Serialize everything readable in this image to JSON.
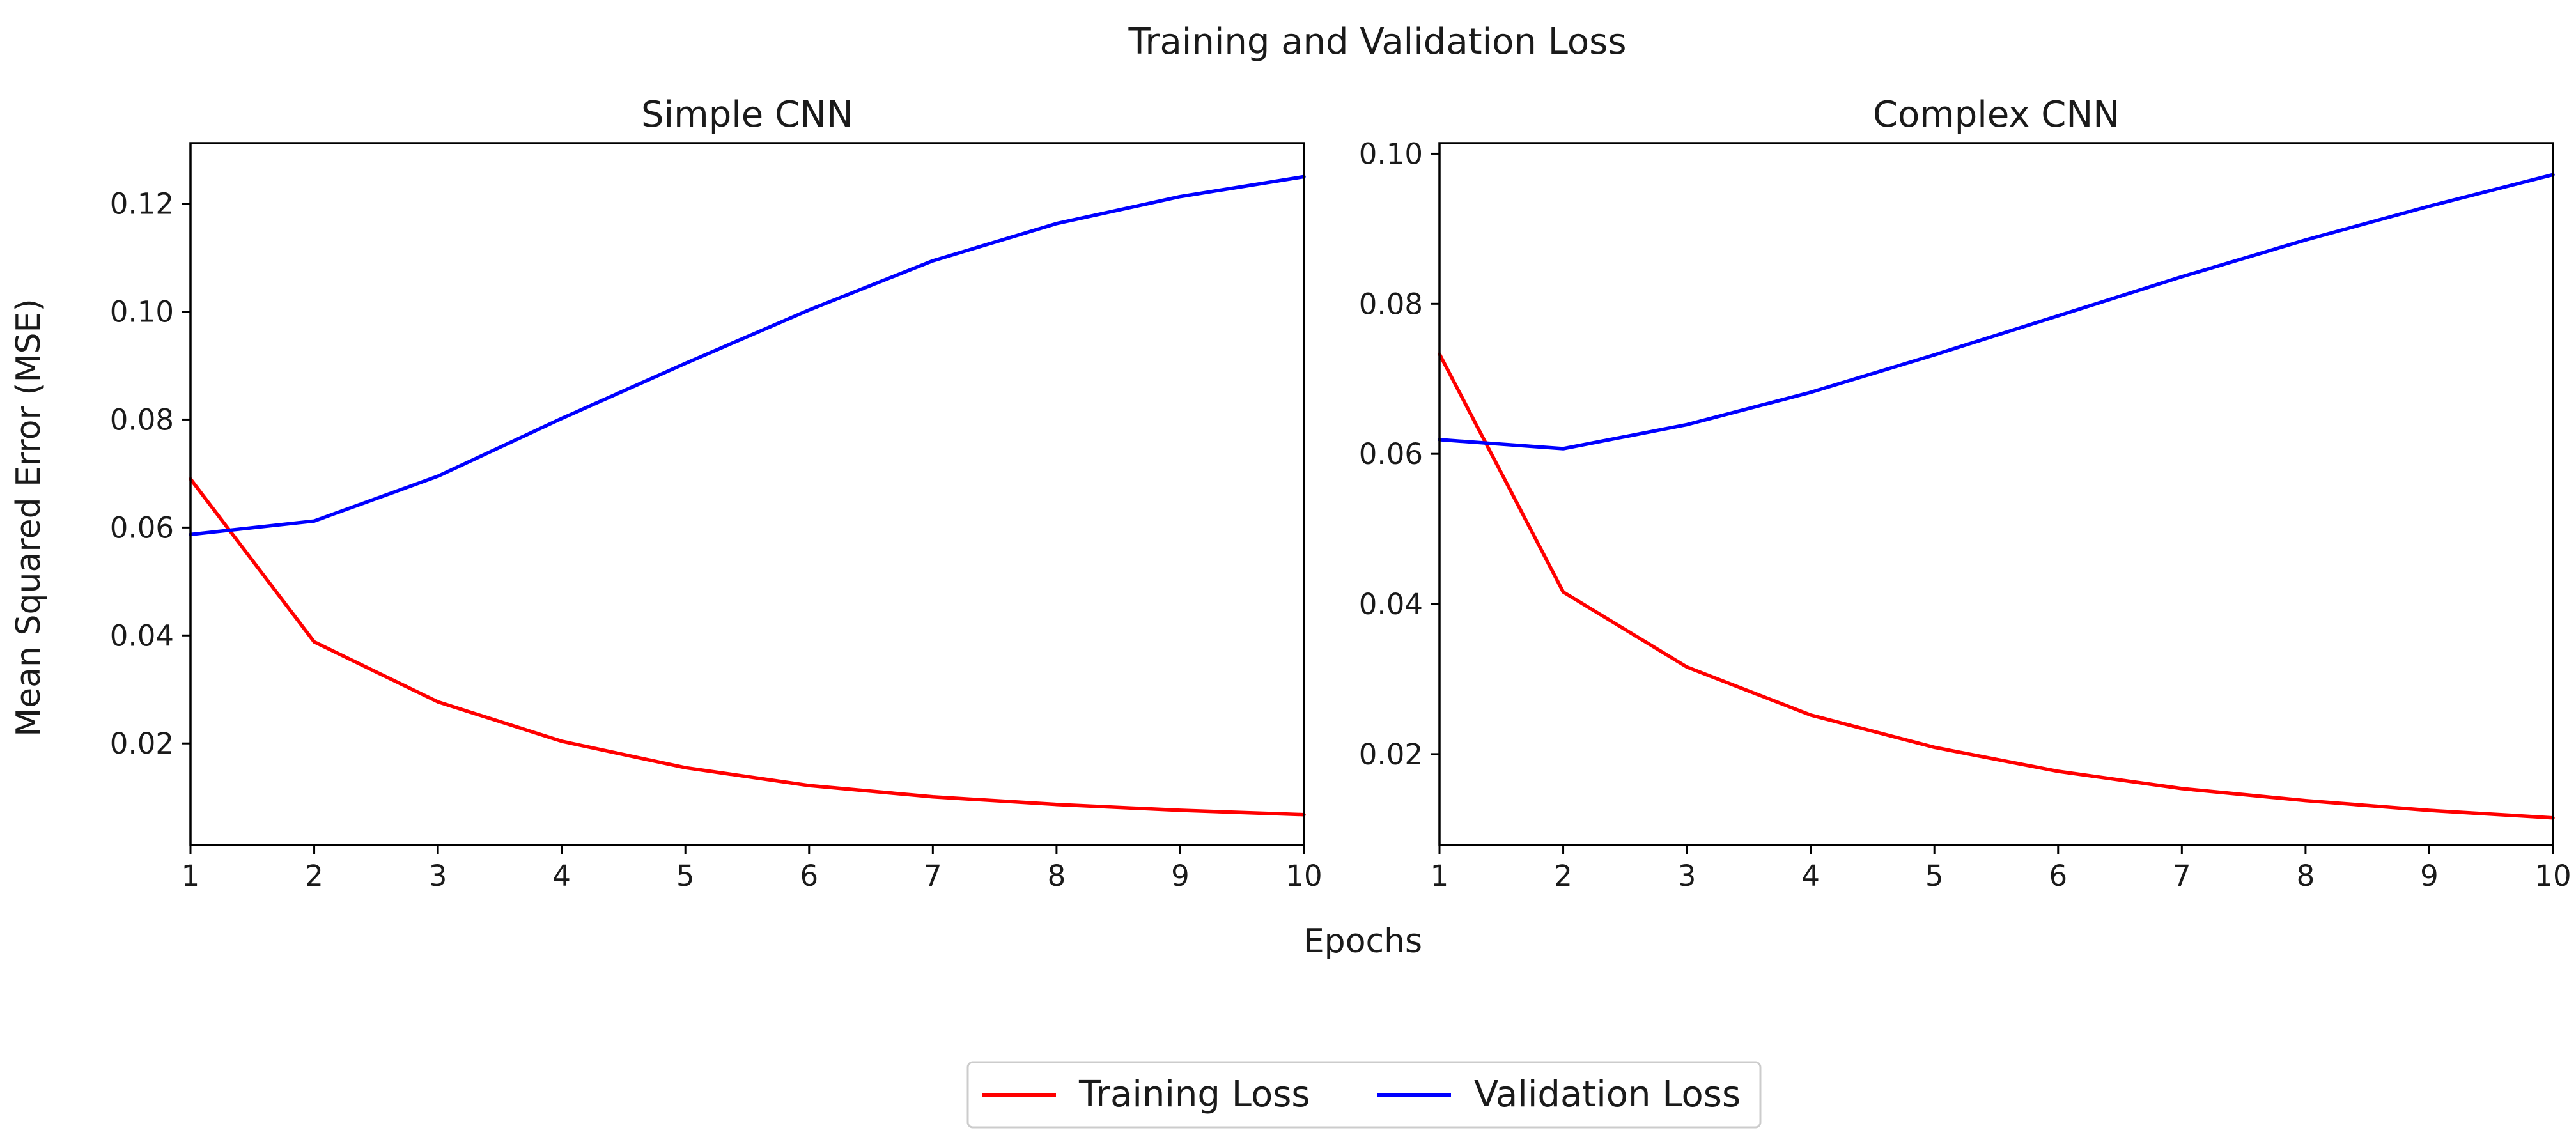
{
  "chart_data": {
    "title": "Training and Validation Loss",
    "xlabel": "Epochs",
    "ylabel": "Mean Squared Error (MSE)",
    "legend": {
      "position": "bottom-center",
      "entries": [
        {
          "label": "Training Loss",
          "color": "#ff0000"
        },
        {
          "label": "Validation Loss",
          "color": "#0000ff"
        }
      ]
    },
    "subplots": [
      {
        "type": "line",
        "title": "Simple CNN",
        "x": [
          1,
          2,
          3,
          4,
          5,
          6,
          7,
          8,
          9,
          10
        ],
        "xlim": [
          1,
          10
        ],
        "xticks": [
          "1",
          "2",
          "3",
          "4",
          "5",
          "6",
          "7",
          "8",
          "9",
          "10"
        ],
        "ylim": [
          0.0012,
          0.1312
        ],
        "yticks": [
          0.02,
          0.04,
          0.06,
          0.08,
          0.1,
          0.12
        ],
        "ytick_labels": [
          "0.02",
          "0.04",
          "0.06",
          "0.08",
          "0.10",
          "0.12"
        ],
        "grid": false,
        "series": [
          {
            "name": "Training Loss",
            "color": "#ff0000",
            "values": [
              0.069,
              0.0388,
              0.0277,
              0.0204,
              0.0155,
              0.0122,
              0.0101,
              0.0087,
              0.0076,
              0.0068
            ]
          },
          {
            "name": "Validation Loss",
            "color": "#0000ff",
            "values": [
              0.0587,
              0.0612,
              0.0695,
              0.0802,
              0.0904,
              0.1003,
              0.1094,
              0.1163,
              0.1213,
              0.125
            ]
          }
        ]
      },
      {
        "type": "line",
        "title": "Complex CNN",
        "x": [
          1,
          2,
          3,
          4,
          5,
          6,
          7,
          8,
          9,
          10
        ],
        "xlim": [
          1,
          10
        ],
        "xticks": [
          "1",
          "2",
          "3",
          "4",
          "5",
          "6",
          "7",
          "8",
          "9",
          "10"
        ],
        "ylim": [
          0.0079,
          0.1014
        ],
        "yticks": [
          0.02,
          0.04,
          0.06,
          0.08,
          0.1
        ],
        "ytick_labels": [
          "0.02",
          "0.04",
          "0.06",
          "0.08",
          "0.10"
        ],
        "grid": false,
        "series": [
          {
            "name": "Training Loss",
            "color": "#ff0000",
            "values": [
              0.0733,
              0.0416,
              0.0316,
              0.0252,
              0.0209,
              0.0177,
              0.0154,
              0.0138,
              0.0125,
              0.0115
            ]
          },
          {
            "name": "Validation Loss",
            "color": "#0000ff",
            "values": [
              0.0619,
              0.0607,
              0.0639,
              0.0682,
              0.0732,
              0.0784,
              0.0836,
              0.0885,
              0.093,
              0.0972
            ]
          }
        ]
      }
    ]
  }
}
